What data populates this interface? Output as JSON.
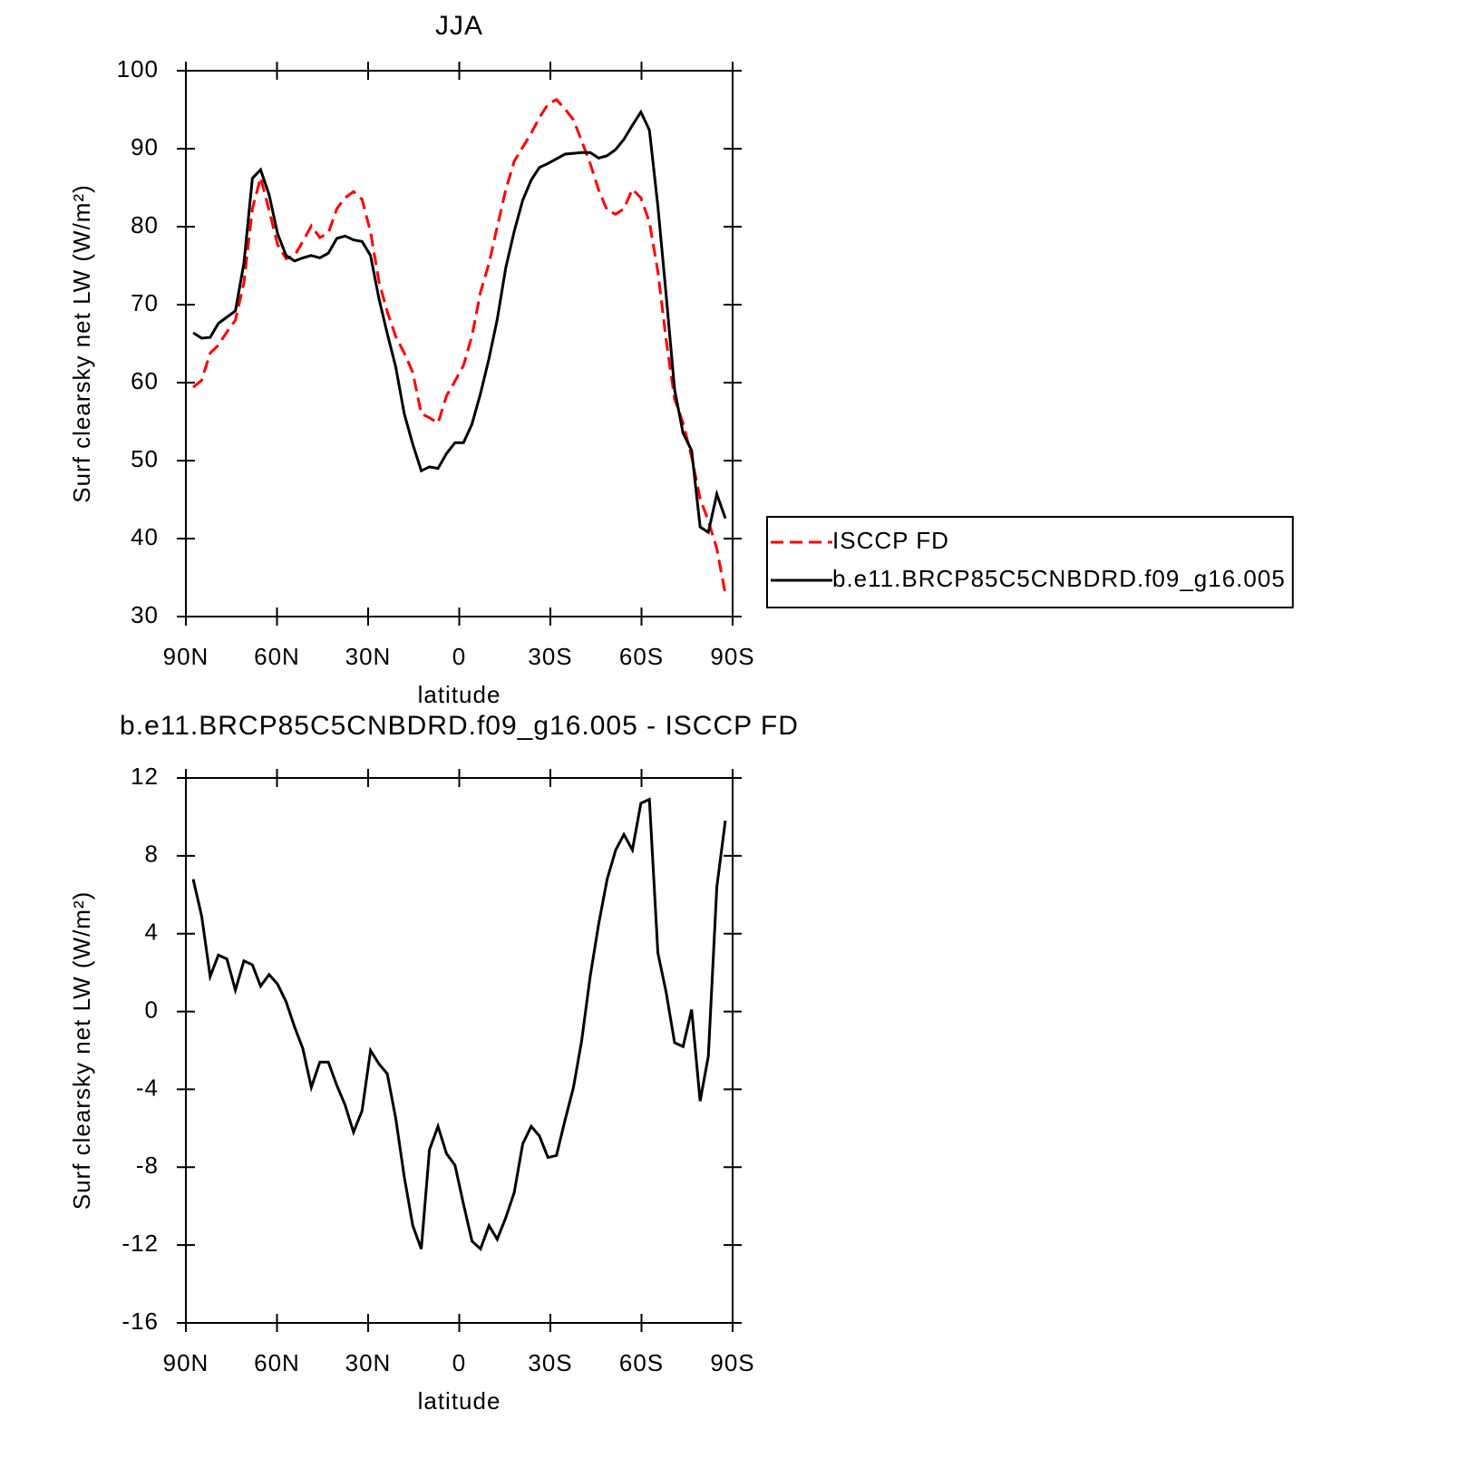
{
  "chart_data": [
    {
      "type": "line",
      "title": "JJA",
      "xlabel": "latitude",
      "ylabel": "Surf clearsky net LW (W/m²)",
      "x": [
        87.6,
        84.8,
        82.0,
        79.3,
        76.5,
        73.7,
        70.9,
        68.1,
        65.4,
        62.6,
        59.8,
        57.0,
        54.2,
        51.5,
        48.7,
        45.9,
        43.1,
        40.3,
        37.6,
        34.8,
        32.0,
        29.2,
        26.4,
        23.7,
        20.9,
        18.1,
        15.3,
        12.5,
        9.8,
        7.0,
        4.2,
        1.4,
        -1.4,
        -4.2,
        -7.0,
        -9.8,
        -12.5,
        -15.3,
        -18.1,
        -20.9,
        -23.7,
        -26.4,
        -29.2,
        -32.0,
        -34.8,
        -37.6,
        -40.3,
        -43.1,
        -45.9,
        -48.7,
        -51.5,
        -54.2,
        -57.0,
        -59.8,
        -62.6,
        -65.4,
        -68.1,
        -70.9,
        -73.7,
        -76.5,
        -79.3,
        -82.0,
        -84.8,
        -87.6
      ],
      "series": [
        {
          "name": "ISCCP FD",
          "color": "#ff0000",
          "line_style": "dashed",
          "values": [
            59.4,
            60.3,
            63.8,
            64.8,
            66.5,
            68.0,
            72.8,
            82.3,
            86.3,
            82.1,
            77.7,
            75.9,
            76.3,
            78.1,
            80.1,
            78.6,
            79.2,
            82.3,
            83.7,
            84.5,
            83.5,
            79.3,
            72.9,
            69.1,
            65.9,
            63.8,
            61.3,
            56.0,
            55.5,
            54.8,
            58.3,
            60.2,
            62.2,
            66.0,
            71.6,
            75.3,
            80.0,
            84.7,
            88.4,
            90.2,
            92.0,
            94.0,
            95.7,
            96.3,
            95.1,
            93.7,
            91.0,
            88.1,
            84.7,
            82.1,
            81.6,
            82.3,
            84.8,
            83.7,
            80.6,
            74.2,
            65.5,
            57.9,
            54.8,
            50.5,
            45.1,
            42.3,
            38.7,
            32.9
          ]
        },
        {
          "name": "b.e11.BRCP85C5CNBDRD.f09_g16.005",
          "color": "#000000",
          "line_style": "solid",
          "values": [
            66.4,
            65.7,
            65.8,
            67.6,
            68.4,
            69.2,
            75.3,
            86.2,
            87.3,
            84.1,
            79.1,
            76.3,
            75.6,
            76.0,
            76.3,
            76.0,
            76.6,
            78.5,
            78.8,
            78.3,
            78.1,
            76.3,
            70.7,
            66.3,
            62.0,
            56.0,
            52.1,
            48.7,
            49.2,
            49.0,
            50.9,
            52.3,
            52.3,
            54.7,
            58.6,
            63.1,
            68.1,
            74.7,
            79.4,
            83.4,
            86.0,
            87.6,
            88.1,
            88.7,
            89.3,
            89.4,
            89.5,
            89.5,
            88.8,
            89.1,
            89.9,
            91.2,
            93.0,
            94.7,
            92.4,
            82.6,
            71.3,
            59.1,
            53.5,
            51.3,
            41.5,
            40.8,
            45.7,
            42.6
          ]
        }
      ],
      "xlim": [
        90,
        -90
      ],
      "xticks": [
        {
          "value": 90,
          "label": "90N"
        },
        {
          "value": 60,
          "label": "60N"
        },
        {
          "value": 30,
          "label": "30N"
        },
        0,
        {
          "value": -30,
          "label": "30S"
        },
        {
          "value": -60,
          "label": "60S"
        },
        {
          "value": -90,
          "label": "90S"
        }
      ],
      "ylim": [
        30,
        100
      ],
      "yticks": [
        30,
        40,
        50,
        60,
        70,
        80,
        90,
        100
      ],
      "legend": "right"
    },
    {
      "type": "line",
      "title": "b.e11.BRCP85C5CNBDRD.f09_g16.005 - ISCCP FD",
      "xlabel": "latitude",
      "ylabel": "Surf clearsky net LW (W/m²)",
      "x": [
        87.6,
        84.8,
        82.0,
        79.3,
        76.5,
        73.7,
        70.9,
        68.1,
        65.4,
        62.6,
        59.8,
        57.0,
        54.2,
        51.5,
        48.7,
        45.9,
        43.1,
        40.3,
        37.6,
        34.8,
        32.0,
        29.2,
        26.4,
        23.7,
        20.9,
        18.1,
        15.3,
        12.5,
        9.8,
        7.0,
        4.2,
        1.4,
        -1.4,
        -4.2,
        -7.0,
        -9.8,
        -12.5,
        -15.3,
        -18.1,
        -20.9,
        -23.7,
        -26.4,
        -29.2,
        -32.0,
        -34.8,
        -37.6,
        -40.3,
        -43.1,
        -45.9,
        -48.7,
        -51.5,
        -54.2,
        -57.0,
        -59.8,
        -62.6,
        -65.4,
        -68.1,
        -70.9,
        -73.7,
        -76.5,
        -79.3,
        -82.0,
        -84.8,
        -87.6
      ],
      "color": "#000000",
      "values": [
        6.8,
        4.9,
        1.8,
        2.9,
        2.7,
        1.1,
        2.6,
        2.4,
        1.3,
        1.9,
        1.4,
        0.5,
        -0.8,
        -1.9,
        -3.9,
        -2.6,
        -2.6,
        -3.8,
        -4.8,
        -6.2,
        -5.1,
        -2.0,
        -2.7,
        -3.2,
        -5.5,
        -8.5,
        -11.0,
        -12.2,
        -7.1,
        -5.9,
        -7.3,
        -7.9,
        -9.9,
        -11.8,
        -12.2,
        -11.0,
        -11.7,
        -10.6,
        -9.3,
        -6.8,
        -5.9,
        -6.4,
        -7.5,
        -7.4,
        -5.6,
        -3.9,
        -1.5,
        1.8,
        4.5,
        6.8,
        8.3,
        9.1,
        8.3,
        10.7,
        10.9,
        3.0,
        1.0,
        -1.6,
        -1.8,
        0.1,
        -4.6,
        -2.3,
        6.4,
        9.8
      ],
      "xlim": [
        90,
        -90
      ],
      "xticks": [
        {
          "value": 90,
          "label": "90N"
        },
        {
          "value": 60,
          "label": "60N"
        },
        {
          "value": 30,
          "label": "30N"
        },
        0,
        {
          "value": -30,
          "label": "30S"
        },
        {
          "value": -60,
          "label": "60S"
        },
        {
          "value": -90,
          "label": "90S"
        }
      ],
      "ylim": [
        -16,
        12
      ],
      "yticks": [
        -16,
        -12,
        -8,
        -4,
        0,
        4,
        8,
        12
      ]
    }
  ]
}
